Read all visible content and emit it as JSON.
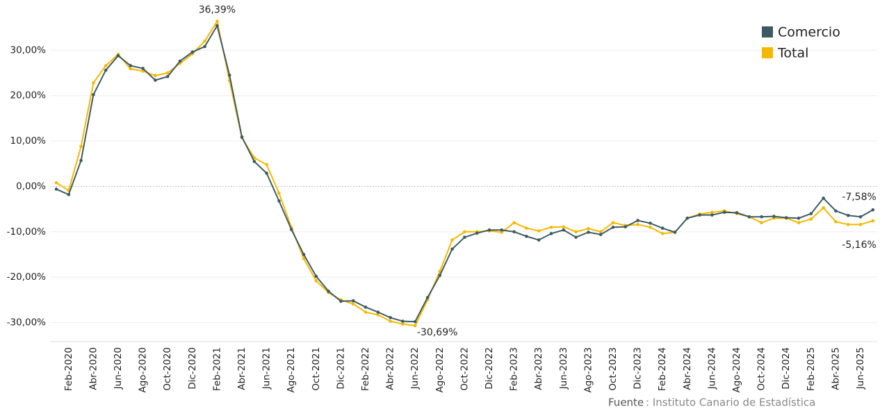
{
  "chart_data": {
    "type": "line",
    "categories": [
      null,
      "Feb-2020",
      null,
      "Abr-2020",
      null,
      "Jun-2020",
      null,
      "Ago-2020",
      null,
      "Oct-2020",
      null,
      "Dic-2020",
      null,
      "Feb-2021",
      null,
      "Abr-2021",
      null,
      "Jun-2021",
      null,
      "Ago-2021",
      null,
      "Oct-2021",
      null,
      "Dic-2021",
      null,
      "Feb-2022",
      null,
      "Abr-2022",
      null,
      "Jun-2022",
      null,
      "Ago-2022",
      null,
      "Oct-2022",
      null,
      "Dic-2022",
      null,
      "Feb-2023",
      null,
      "Abr-2023",
      null,
      "Jun-2023",
      null,
      "Ago-2023",
      null,
      "Oct-2023",
      null,
      "Dic-2023",
      null,
      "Feb-2024",
      null,
      "Abr-2024",
      null,
      "Jun-2024",
      null,
      "Ago-2024",
      null,
      "Oct-2024",
      null,
      "Dic-2024",
      null,
      "Feb-2025",
      null,
      "Abr-2025",
      null,
      "Jun-2025",
      null
    ],
    "series": [
      {
        "name": "Comercio",
        "color": "#3d5a63",
        "values": [
          -0.6,
          -1.8,
          5.7,
          20.2,
          25.6,
          28.8,
          26.6,
          26.0,
          23.4,
          24.2,
          27.6,
          29.6,
          30.8,
          35.4,
          24.5,
          10.9,
          5.5,
          2.9,
          -3.2,
          -9.5,
          -15.0,
          -19.8,
          -23.1,
          -25.3,
          -25.2,
          -26.6,
          -27.7,
          -28.9,
          -29.7,
          -29.8,
          -24.5,
          -19.6,
          -13.8,
          -11.2,
          -10.3,
          -9.6,
          -9.6,
          -10.0,
          -11.0,
          -11.8,
          -10.4,
          -9.6,
          -11.2,
          -10.1,
          -10.6,
          -9.0,
          -8.9,
          -7.5,
          -8.1,
          -9.2,
          -10.1,
          -7.0,
          -6.3,
          -6.3,
          -5.7,
          -5.8,
          -6.7,
          -6.7,
          -6.6,
          -6.9,
          -7.0,
          -6.0,
          -2.6,
          -5.4,
          -6.4,
          -6.7,
          -5.16
        ],
        "value_labels": [
          null,
          null,
          null,
          null,
          null,
          null,
          null,
          null,
          null,
          null,
          null,
          null,
          null,
          null,
          null,
          null,
          null,
          null,
          null,
          null,
          null,
          null,
          null,
          null,
          null,
          null,
          null,
          null,
          null,
          null,
          null,
          null,
          null,
          null,
          null,
          null,
          null,
          null,
          null,
          null,
          null,
          null,
          null,
          null,
          null,
          null,
          null,
          null,
          null,
          null,
          null,
          null,
          null,
          null,
          null,
          null,
          null,
          null,
          null,
          null,
          null,
          null,
          null,
          null,
          null,
          null,
          "-5,16%"
        ]
      },
      {
        "name": "Total",
        "color": "#f5b800",
        "values": [
          0.8,
          -0.9,
          8.8,
          22.8,
          26.6,
          29.1,
          25.9,
          25.4,
          24.4,
          25.0,
          27.1,
          29.2,
          32.0,
          36.39,
          23.3,
          10.7,
          6.3,
          4.8,
          -1.5,
          -9.0,
          -15.9,
          -20.8,
          -23.4,
          -25.0,
          -25.9,
          -27.7,
          -28.3,
          -29.7,
          -30.3,
          -30.69,
          -25.0,
          -18.7,
          -11.8,
          -10.0,
          -10.0,
          -9.8,
          -10.1,
          -8.0,
          -9.2,
          -9.8,
          -9.0,
          -8.9,
          -10.0,
          -9.3,
          -10.0,
          -8.0,
          -8.6,
          -8.4,
          -9.0,
          -10.4,
          -10.1,
          -7.0,
          -6.1,
          -5.7,
          -5.4,
          -6.0,
          -6.7,
          -8.0,
          -7.0,
          -7.0,
          -8.0,
          -7.2,
          -4.7,
          -7.8,
          -8.4,
          -8.4,
          -7.58
        ],
        "value_labels": [
          null,
          null,
          null,
          null,
          null,
          null,
          null,
          null,
          null,
          null,
          null,
          null,
          null,
          "36,39%",
          null,
          null,
          null,
          null,
          null,
          null,
          null,
          null,
          null,
          null,
          null,
          null,
          null,
          null,
          null,
          "-30,69%",
          null,
          null,
          null,
          null,
          null,
          null,
          null,
          null,
          null,
          null,
          null,
          null,
          null,
          null,
          null,
          null,
          null,
          null,
          null,
          null,
          null,
          null,
          null,
          null,
          null,
          null,
          null,
          null,
          null,
          null,
          null,
          null,
          null,
          null,
          null,
          null,
          "-7,58%"
        ]
      }
    ],
    "ylim": [
      -34.2,
      40.3
    ],
    "yticks": [
      {
        "value": -30,
        "label": "-30,00%"
      },
      {
        "value": -20,
        "label": "-20,00%"
      },
      {
        "value": -10,
        "label": "-10,00%"
      },
      {
        "value": 0,
        "label": "0,00%"
      },
      {
        "value": 10,
        "label": "10,00%"
      },
      {
        "value": 20,
        "label": "20,00%"
      },
      {
        "value": 30,
        "label": "30,00%"
      }
    ],
    "grid": true,
    "legend": "top-right",
    "source_label": "Fuente",
    "source_text": ": Instituto Canario de Estadística"
  }
}
